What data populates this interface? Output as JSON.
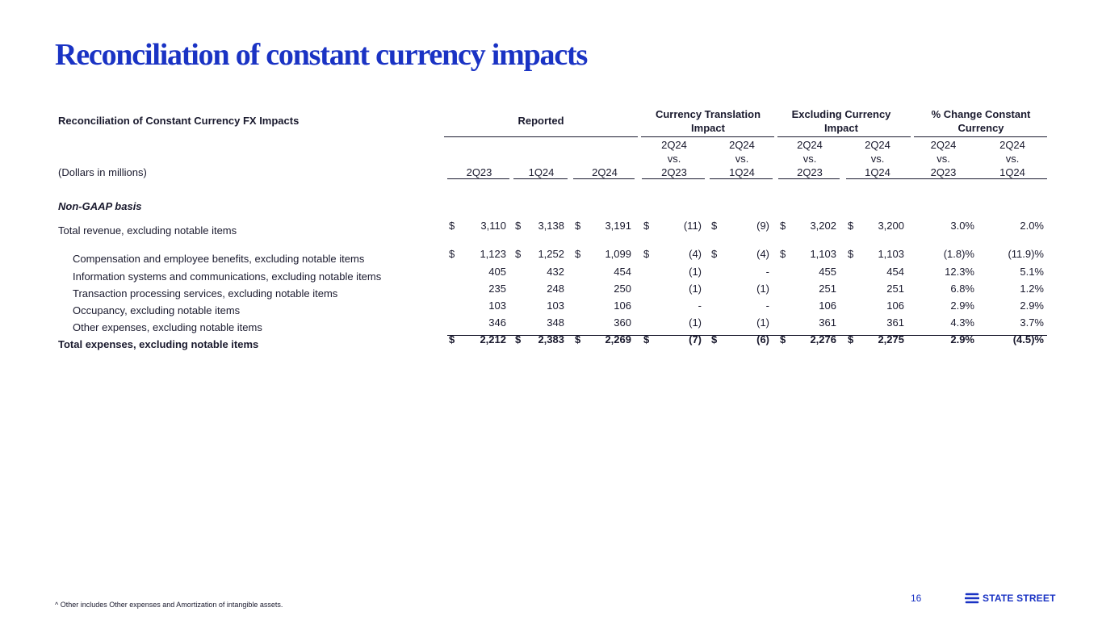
{
  "page": {
    "title": "Reconciliation of constant currency impacts",
    "page_number": "16",
    "footnote": "^ Other includes Other expenses and Amortization of intangible assets.",
    "brand": "STATE STREET",
    "accent_color": "#1a33c4"
  },
  "table": {
    "title": "Reconciliation of Constant Currency FX Impacts",
    "units": "(Dollars in millions)",
    "section": "Non-GAAP basis",
    "groups": {
      "reported": "Reported",
      "translation": [
        "Currency Translation",
        "Impact"
      ],
      "excluding": [
        "Excluding Currency",
        "Impact"
      ],
      "change": [
        "% Change Constant",
        "Currency"
      ]
    },
    "columns": [
      {
        "l1": "",
        "l2": "",
        "l3": "2Q23"
      },
      {
        "l1": "",
        "l2": "",
        "l3": "1Q24"
      },
      {
        "l1": "",
        "l2": "",
        "l3": "2Q24"
      },
      {
        "l1": "2Q24",
        "l2": "vs.",
        "l3": "2Q23"
      },
      {
        "l1": "2Q24",
        "l2": "vs.",
        "l3": "1Q24"
      },
      {
        "l1": "2Q24",
        "l2": "vs.",
        "l3": "2Q23"
      },
      {
        "l1": "2Q24",
        "l2": "vs.",
        "l3": "1Q24"
      },
      {
        "l1": "2Q24",
        "l2": "vs.",
        "l3": "2Q23"
      },
      {
        "l1": "2Q24",
        "l2": "vs.",
        "l3": "1Q24"
      }
    ],
    "rows": [
      {
        "label": "Total revenue, excluding notable items",
        "dollar": true,
        "values": [
          "3,110",
          "3,138",
          "3,191",
          "(11)",
          "(9)",
          "3,202",
          "3,200",
          "3.0%",
          "2.0%"
        ]
      },
      {
        "label": "Compensation and employee benefits, excluding notable items",
        "dollar": true,
        "values": [
          "1,123",
          "1,252",
          "1,099",
          "(4)",
          "(4)",
          "1,103",
          "1,103",
          "(1.8)%",
          "(11.9)%"
        ]
      },
      {
        "label": "Information systems and communications, excluding notable items",
        "dollar": false,
        "values": [
          "405",
          "432",
          "454",
          "(1)",
          "-",
          "455",
          "454",
          "12.3%",
          "5.1%"
        ]
      },
      {
        "label": "Transaction processing services, excluding notable items",
        "dollar": false,
        "values": [
          "235",
          "248",
          "250",
          "(1)",
          "(1)",
          "251",
          "251",
          "6.8%",
          "1.2%"
        ]
      },
      {
        "label": "Occupancy, excluding notable items",
        "dollar": false,
        "values": [
          "103",
          "103",
          "106",
          "-",
          "-",
          "106",
          "106",
          "2.9%",
          "2.9%"
        ]
      },
      {
        "label": "Other expenses, excluding notable items",
        "dollar": false,
        "values": [
          "346",
          "348",
          "360",
          "(1)",
          "(1)",
          "361",
          "361",
          "4.3%",
          "3.7%"
        ]
      },
      {
        "label": "Total expenses, excluding notable items",
        "dollar": true,
        "values": [
          "2,212",
          "2,383",
          "2,269",
          "(7)",
          "(6)",
          "2,276",
          "2,275",
          "2.9%",
          "(4.5)%"
        ]
      }
    ],
    "dollar_sign": "$"
  }
}
